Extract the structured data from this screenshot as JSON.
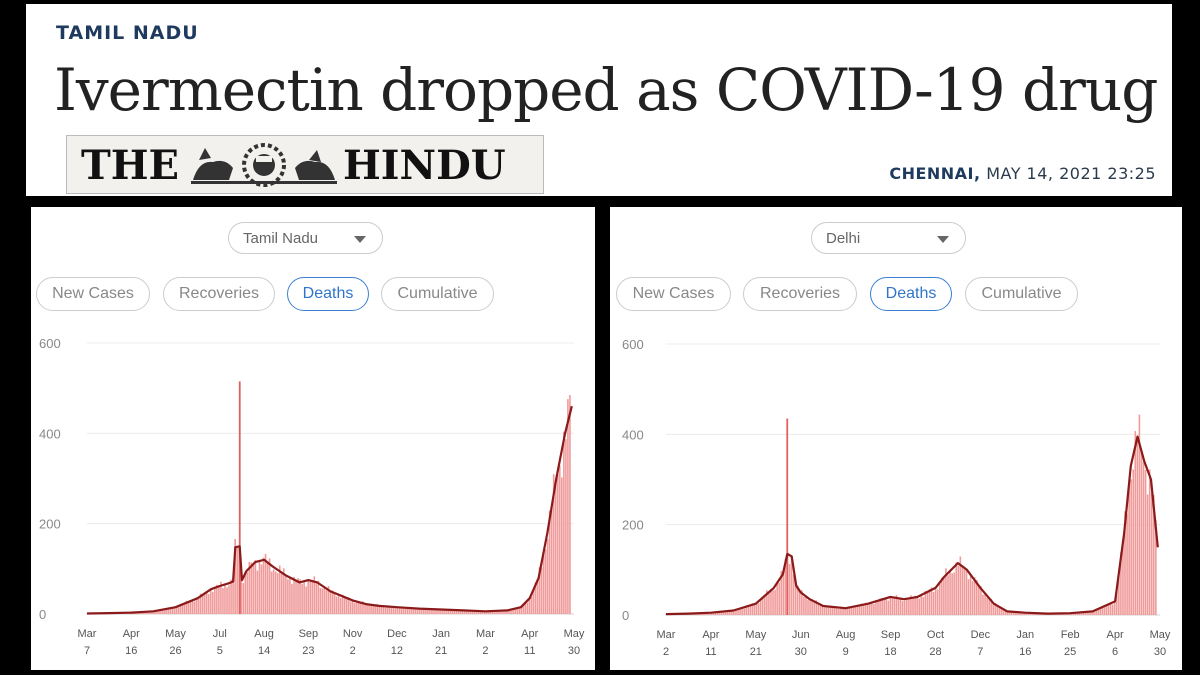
{
  "header": {
    "kicker": "TAMIL NADU",
    "headline": "Ivermectin dropped as COVID-19 drug",
    "masthead_left": "THE",
    "masthead_right": "HINDU",
    "dateline_city": "CHENNAI,",
    "dateline_time": "MAY 14, 2021 23:25"
  },
  "colors": {
    "line": "#8b1a1a",
    "bar": "#f09a9a",
    "grid": "#ececec",
    "active_tab": "#2f75c9",
    "kicker": "#1e3a5f"
  },
  "panels": [
    {
      "region": "Tamil Nadu",
      "tabs": [
        "New Cases",
        "Recoveries",
        "Deaths",
        "Cumulative"
      ],
      "active_tab": "Deaths"
    },
    {
      "region": "Delhi",
      "tabs": [
        "New Cases",
        "Recoveries",
        "Deaths",
        "Cumulative"
      ],
      "active_tab": "Deaths"
    }
  ],
  "chart_data": [
    {
      "type": "area",
      "ylim": [
        0,
        600
      ],
      "yticks": [
        0,
        200,
        400,
        600
      ],
      "xticks": [
        [
          "Mar",
          "7"
        ],
        [
          "Apr",
          "16"
        ],
        [
          "May",
          "26"
        ],
        [
          "Jul",
          "5"
        ],
        [
          "Aug",
          "14"
        ],
        [
          "Sep",
          "23"
        ],
        [
          "Nov",
          "2"
        ],
        [
          "Dec",
          "12"
        ],
        [
          "Jan",
          "21"
        ],
        [
          "Mar",
          "2"
        ],
        [
          "Apr",
          "11"
        ],
        [
          "May",
          "30"
        ]
      ],
      "x_range": [
        0,
        11
      ],
      "series": [
        {
          "kind": "average",
          "x": [
            0,
            0.5,
            1,
            1.5,
            2,
            2.5,
            2.8,
            3,
            3.2,
            3.3,
            3.35,
            3.45,
            3.5,
            3.6,
            3.8,
            4,
            4.2,
            4.5,
            4.8,
            5,
            5.2,
            5.5,
            5.8,
            6,
            6.3,
            6.6,
            7,
            7.5,
            8,
            8.5,
            9,
            9.5,
            9.8,
            10,
            10.2,
            10.4,
            10.6,
            10.8,
            10.95
          ],
          "y": [
            1,
            2,
            3,
            6,
            15,
            35,
            55,
            62,
            68,
            72,
            148,
            150,
            75,
            95,
            115,
            120,
            105,
            85,
            70,
            75,
            70,
            50,
            38,
            30,
            22,
            18,
            15,
            12,
            10,
            8,
            6,
            8,
            15,
            35,
            80,
            180,
            300,
            400,
            460
          ]
        },
        {
          "kind": "daily",
          "x": [
            3.45
          ],
          "y": [
            515
          ]
        }
      ]
    },
    {
      "type": "area",
      "ylim": [
        0,
        600
      ],
      "yticks": [
        0,
        200,
        400,
        600
      ],
      "xticks": [
        [
          "Mar",
          "2"
        ],
        [
          "Apr",
          "11"
        ],
        [
          "May",
          "21"
        ],
        [
          "Jun",
          "30"
        ],
        [
          "Aug",
          "9"
        ],
        [
          "Sep",
          "18"
        ],
        [
          "Oct",
          "28"
        ],
        [
          "Dec",
          "7"
        ],
        [
          "Jan",
          "16"
        ],
        [
          "Feb",
          "25"
        ],
        [
          "Apr",
          "6"
        ],
        [
          "May",
          "30"
        ]
      ],
      "x_range": [
        0,
        11
      ],
      "series": [
        {
          "kind": "average",
          "x": [
            0,
            0.5,
            1,
            1.5,
            2,
            2.4,
            2.6,
            2.7,
            2.8,
            2.9,
            3,
            3.2,
            3.5,
            4,
            4.5,
            5,
            5.3,
            5.6,
            6,
            6.2,
            6.5,
            6.7,
            7,
            7.3,
            7.6,
            8,
            8.5,
            9,
            9.5,
            10,
            10.2,
            10.35,
            10.5,
            10.65,
            10.8,
            10.95
          ],
          "y": [
            2,
            3,
            5,
            10,
            25,
            60,
            90,
            135,
            130,
            65,
            50,
            35,
            20,
            15,
            25,
            40,
            35,
            40,
            60,
            85,
            115,
            100,
            60,
            25,
            8,
            5,
            3,
            4,
            8,
            30,
            180,
            330,
            395,
            340,
            300,
            150
          ]
        },
        {
          "kind": "daily",
          "x": [
            2.7
          ],
          "y": [
            435
          ]
        }
      ]
    }
  ]
}
